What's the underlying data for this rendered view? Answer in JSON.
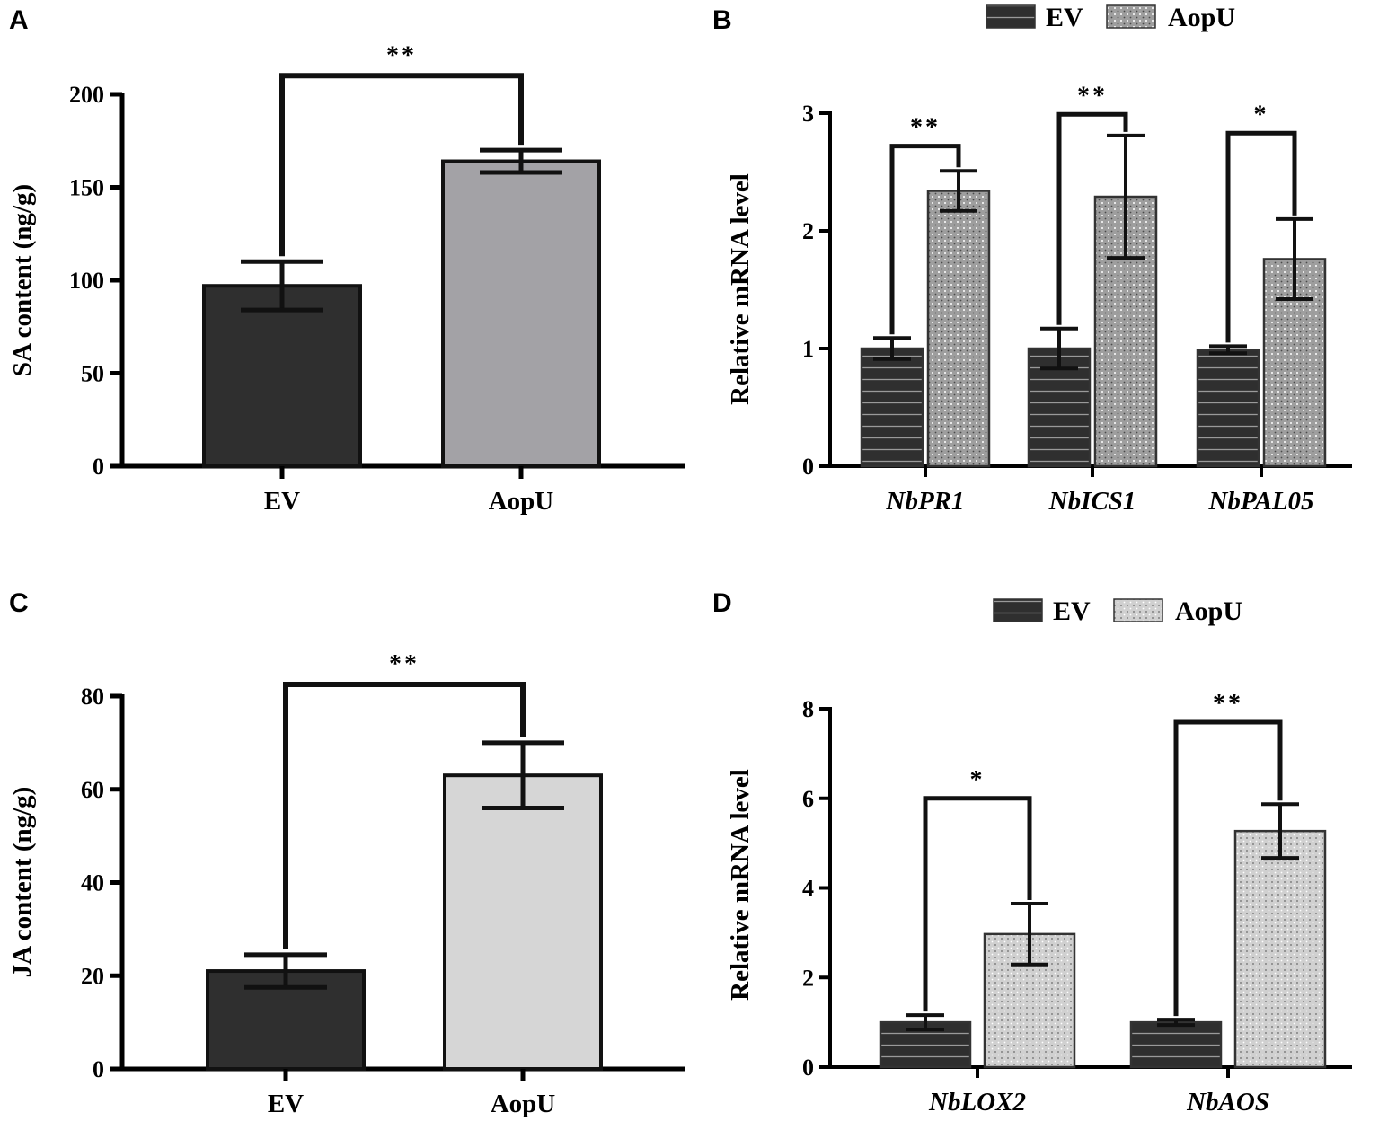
{
  "colors": {
    "ev_dark": "#2f2f2f",
    "aopu_A": "#a3a2a6",
    "aopu_B": "#9e9e9e",
    "aopu_C": "#d6d6d6",
    "aopu_D": "#d0d0d0",
    "axis": "#000000"
  },
  "chart_data": [
    {
      "id": "A",
      "panel_label": "A",
      "type": "bar",
      "categories": [
        "EV",
        "AopU"
      ],
      "values": [
        97,
        164
      ],
      "errors": [
        13,
        6
      ],
      "ylabel": "SA content (ng/g)",
      "xlabel": "",
      "ylim": [
        0,
        200
      ],
      "yticks": [
        0,
        50,
        100,
        150,
        200
      ],
      "significance": [
        {
          "between": [
            0,
            1
          ],
          "label": "**",
          "level": 210
        }
      ]
    },
    {
      "id": "B",
      "panel_label": "B",
      "type": "bar",
      "categories": [
        "NbPR1",
        "NbICS1",
        "NbPAL05"
      ],
      "series": [
        {
          "name": "EV",
          "values": [
            1.0,
            1.0,
            0.99
          ],
          "errors": [
            0.09,
            0.17,
            0.03
          ]
        },
        {
          "name": "AopU",
          "values": [
            2.34,
            2.29,
            1.76
          ],
          "errors": [
            0.17,
            0.52,
            0.34
          ]
        }
      ],
      "legend": [
        "EV",
        "AopU"
      ],
      "ylabel": "Relative mRNA level",
      "xlabel": "",
      "ylim": [
        0,
        3
      ],
      "yticks": [
        0,
        1,
        2,
        3
      ],
      "significance": [
        {
          "group": 0,
          "label": "**",
          "level": 2.72
        },
        {
          "group": 1,
          "label": "**",
          "level": 2.99
        },
        {
          "group": 2,
          "label": "*",
          "level": 2.83
        }
      ]
    },
    {
      "id": "C",
      "panel_label": "C",
      "type": "bar",
      "categories": [
        "EV",
        "AopU"
      ],
      "values": [
        21,
        63
      ],
      "errors": [
        3.5,
        7
      ],
      "ylabel": "JA content (ng/g)",
      "xlabel": "",
      "ylim": [
        0,
        80
      ],
      "yticks": [
        0,
        20,
        40,
        60,
        80
      ],
      "significance": [
        {
          "between": [
            0,
            1
          ],
          "label": "**",
          "level": 82.5
        }
      ]
    },
    {
      "id": "D",
      "panel_label": "D",
      "type": "bar",
      "categories": [
        "NbLOX2",
        "NbAOS"
      ],
      "series": [
        {
          "name": "EV",
          "values": [
            1.0,
            1.0
          ],
          "errors": [
            0.16,
            0.06
          ]
        },
        {
          "name": "AopU",
          "values": [
            2.97,
            5.27
          ],
          "errors": [
            0.68,
            0.6
          ]
        }
      ],
      "legend": [
        "EV",
        "AopU"
      ],
      "ylabel": "Relative mRNA level",
      "xlabel": "",
      "ylim": [
        0,
        8
      ],
      "yticks": [
        0,
        2,
        4,
        6,
        8
      ],
      "significance": [
        {
          "group": 0,
          "label": "*",
          "level": 6.0
        },
        {
          "group": 1,
          "label": "**",
          "level": 7.7
        }
      ]
    }
  ]
}
